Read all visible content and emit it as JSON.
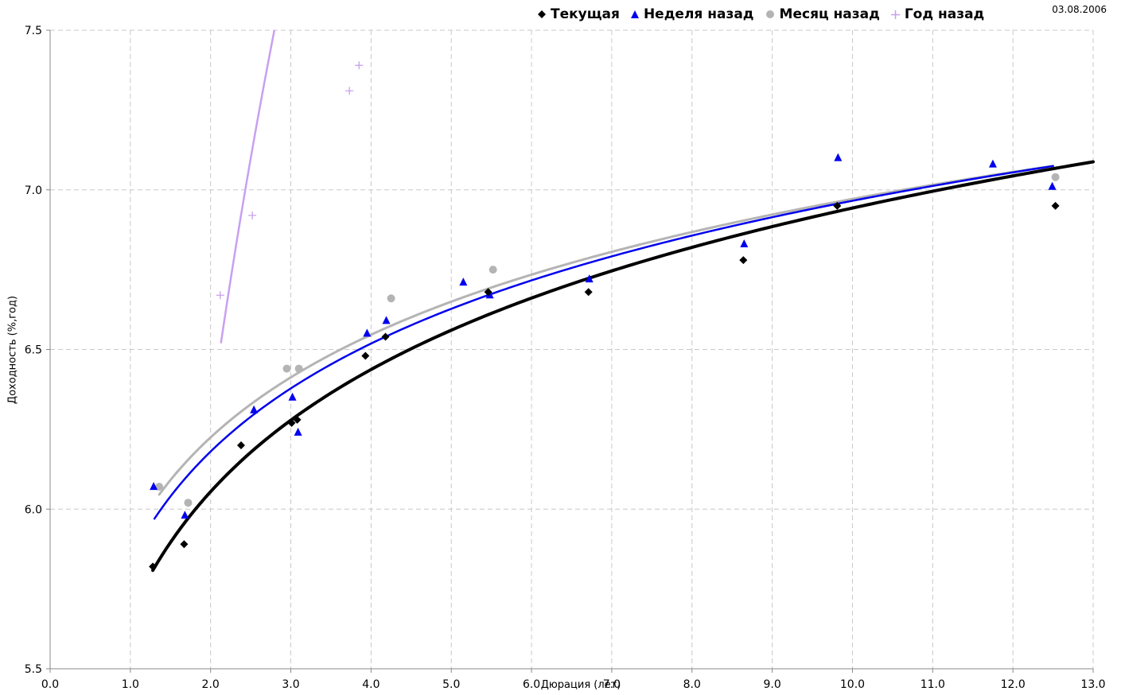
{
  "date": "03.08.2006",
  "chart_data": {
    "type": "scatter",
    "title": "",
    "xlabel": "Дюрация (лет)",
    "ylabel": "Доходность (%,год)",
    "xlim": [
      0,
      13
    ],
    "ylim": [
      5.5,
      7.5
    ],
    "x_ticks": [
      "0.0",
      "1.0",
      "2.0",
      "3.0",
      "4.0",
      "5.0",
      "6.0",
      "7.0",
      "8.0",
      "9.0",
      "10.0",
      "11.0",
      "12.0",
      "13.0"
    ],
    "y_ticks": [
      "5.5",
      "6.0",
      "6.5",
      "7.0",
      "7.5"
    ],
    "grid": true,
    "legend_position": "top",
    "series": [
      {
        "name": "Текущая",
        "marker": "diamond",
        "color": "#000000",
        "points": [
          [
            1.28,
            5.82
          ],
          [
            1.67,
            5.89
          ],
          [
            2.38,
            6.2
          ],
          [
            3.01,
            6.27
          ],
          [
            3.08,
            6.28
          ],
          [
            3.93,
            6.48
          ],
          [
            4.18,
            6.54
          ],
          [
            5.46,
            6.68
          ],
          [
            6.71,
            6.68
          ],
          [
            8.64,
            6.78
          ],
          [
            9.81,
            6.95
          ],
          [
            12.53,
            6.95
          ]
        ],
        "trend": {
          "a": 5.672,
          "b": 0.552,
          "x_from": 1.28,
          "x_to": 13.0
        }
      },
      {
        "name": "Неделя назад",
        "marker": "triangle",
        "color": "#0000ee",
        "points": [
          [
            1.29,
            6.07
          ],
          [
            1.68,
            5.98
          ],
          [
            2.54,
            6.31
          ],
          [
            3.02,
            6.35
          ],
          [
            3.09,
            6.24
          ],
          [
            3.95,
            6.55
          ],
          [
            4.19,
            6.59
          ],
          [
            5.15,
            6.71
          ],
          [
            5.48,
            6.67
          ],
          [
            6.72,
            6.72
          ],
          [
            8.65,
            6.83
          ],
          [
            9.82,
            7.1
          ],
          [
            11.75,
            7.08
          ],
          [
            12.49,
            7.01
          ]
        ],
        "trend": {
          "a": 5.842,
          "b": 0.488,
          "x_from": 1.3,
          "x_to": 12.5
        }
      },
      {
        "name": "Месяц назад",
        "marker": "circle",
        "color": "#b4b4b4",
        "points": [
          [
            1.36,
            6.07
          ],
          [
            1.72,
            6.02
          ],
          [
            2.95,
            6.44
          ],
          [
            3.1,
            6.44
          ],
          [
            4.25,
            6.66
          ],
          [
            5.52,
            6.75
          ],
          [
            12.53,
            7.04
          ]
        ],
        "trend": {
          "a": 5.903,
          "b": 0.464,
          "x_from": 1.36,
          "x_to": 12.5
        }
      },
      {
        "name": "Год назад",
        "marker": "plus",
        "color": "#c8a0f0",
        "points": [
          [
            2.12,
            6.67
          ],
          [
            2.52,
            6.92
          ],
          [
            3.73,
            7.31
          ],
          [
            3.85,
            7.39
          ]
        ],
        "trend": {
          "a": 3.8,
          "b": 3.6,
          "x_from": 2.13,
          "x_to": 3.83
        }
      }
    ]
  }
}
